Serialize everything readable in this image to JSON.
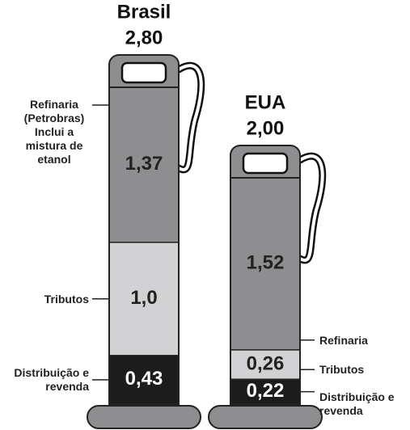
{
  "chart_data": {
    "type": "bar",
    "stacked": true,
    "categories": [
      "Brasil",
      "EUA"
    ],
    "totals": {
      "values": [
        2.8,
        2.0
      ],
      "value_labels": [
        "2,80",
        "2,00"
      ]
    },
    "series": [
      {
        "name": "Distribuição e revenda",
        "color": "#1c1c1c",
        "values": [
          0.43,
          0.22
        ],
        "value_labels": [
          "0,43",
          "0,22"
        ]
      },
      {
        "name": "Tributos",
        "color": "#d2d2d4",
        "values": [
          1.0,
          0.26
        ],
        "value_labels": [
          "1,0",
          "0,26"
        ]
      },
      {
        "name": "Refinaria",
        "color": "#8e8e90",
        "values": [
          1.37,
          1.52
        ],
        "value_labels": [
          "1,37",
          "1,52"
        ]
      }
    ],
    "annotations": [
      {
        "text": "Refinaria (Petrobras) Inclui a mistura de etanol"
      }
    ]
  }
}
